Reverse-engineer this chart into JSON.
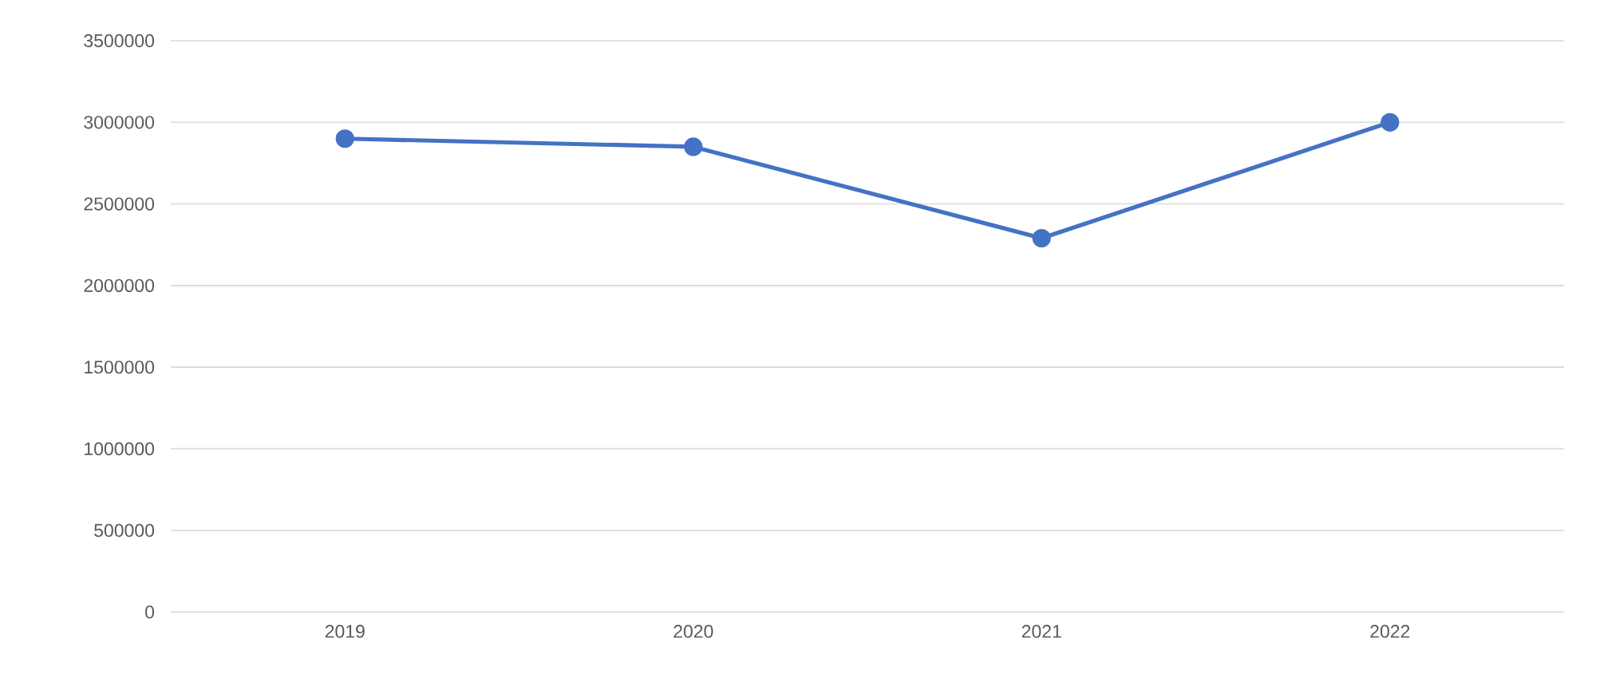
{
  "chart_data": {
    "type": "line",
    "categories": [
      "2019",
      "2020",
      "2021",
      "2022"
    ],
    "series": [
      {
        "color": "#4472c4",
        "values": [
          2900000,
          2850000,
          2290000,
          3000000
        ]
      }
    ],
    "ylim": [
      0,
      3500000
    ],
    "yticks": [
      0,
      500000,
      1000000,
      1500000,
      2000000,
      2500000,
      3000000,
      3500000
    ],
    "grid": "y",
    "marker": "circle"
  }
}
